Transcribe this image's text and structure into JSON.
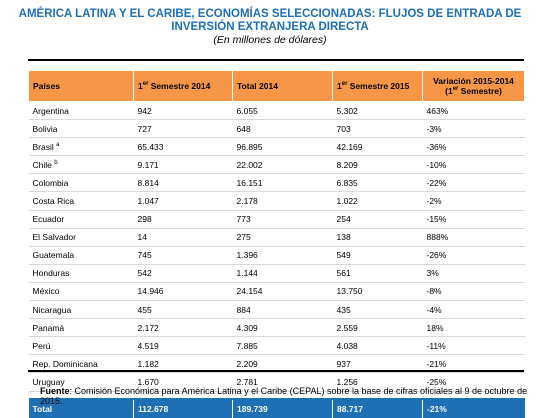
{
  "title_line1": "AMÉRICA LATINA Y EL CARIBE, ECONOMÍAS SELECCIONADAS: FLUJOS DE ENTRADA DE",
  "title_line2": "INVERSIÓN EXTRANJERA DIRECTA",
  "subtitle": "(En millones de dólares)",
  "header": {
    "col1": "Países",
    "col2_pre": "1",
    "col2_sup": "er",
    "col2_post": " Semestre 2014",
    "col3": "Total 2014",
    "col4_pre": "1",
    "col4_sup": "er",
    "col4_post": " Semestre 2015",
    "col5_pre": "Variación 2015-2014 (1",
    "col5_sup": "er",
    "col5_post": " Semestre)"
  },
  "rows": [
    {
      "country": "Argentina",
      "sup": "",
      "s2014": "942",
      "total2014": "6.055",
      "s2015": "5.302",
      "var": "463%"
    },
    {
      "country": "Bolivia",
      "sup": "",
      "s2014": "727",
      "total2014": "648",
      "s2015": "703",
      "var": "-3%"
    },
    {
      "country": "Brasil",
      "sup": "a",
      "s2014": "65.433",
      "total2014": "96.895",
      "s2015": "42.169",
      "var": "-36%"
    },
    {
      "country": "Chile",
      "sup": "b",
      "s2014": "9.171",
      "total2014": "22.002",
      "s2015": "8.209",
      "var": "-10%"
    },
    {
      "country": "Colombia",
      "sup": "",
      "s2014": "8.814",
      "total2014": "16.151",
      "s2015": "6.835",
      "var": "-22%"
    },
    {
      "country": "Costa Rica",
      "sup": "",
      "s2014": "1.047",
      "total2014": "2.178",
      "s2015": "1.022",
      "var": "-2%"
    },
    {
      "country": "Ecuador",
      "sup": "",
      "s2014": "298",
      "total2014": "773",
      "s2015": "254",
      "var": "-15%"
    },
    {
      "country": "El Salvador",
      "sup": "",
      "s2014": "14",
      "total2014": "275",
      "s2015": "138",
      "var": "888%"
    },
    {
      "country": "Guatemala",
      "sup": "",
      "s2014": "745",
      "total2014": "1.396",
      "s2015": "549",
      "var": "-26%"
    },
    {
      "country": "Honduras",
      "sup": "",
      "s2014": "542",
      "total2014": "1.144",
      "s2015": "561",
      "var": "3%"
    },
    {
      "country": "México",
      "sup": "",
      "s2014": "14.946",
      "total2014": "24.154",
      "s2015": "13.750",
      "var": "-8%"
    },
    {
      "country": "Nicaragua",
      "sup": "",
      "s2014": "455",
      "total2014": "884",
      "s2015": "435",
      "var": "-4%"
    },
    {
      "country": "Panamá",
      "sup": "",
      "s2014": "2.172",
      "total2014": "4.309",
      "s2015": "2.559",
      "var": "18%"
    },
    {
      "country": "Perú",
      "sup": "",
      "s2014": "4.519",
      "total2014": "7.885",
      "s2015": "4.038",
      "var": "-11%"
    },
    {
      "country": "Rep. Dominicana",
      "sup": "",
      "s2014": "1.182",
      "total2014": "2.209",
      "s2015": "937",
      "var": "-21%"
    },
    {
      "country": "Uruguay",
      "sup": "",
      "s2014": "1.670",
      "total2014": "2.781",
      "s2015": "1.256",
      "var": "-25%"
    }
  ],
  "total": {
    "label": "Total",
    "s2014": "112.678",
    "total2014": "189.739",
    "s2015": "88.717",
    "var": "-21%"
  },
  "source_label": "Fuente",
  "source_text": ": Comisión Económica para América Latina y el Caribe (CEPAL) sobre la base de cifras oficiales al 9 de octubre de 2015."
}
